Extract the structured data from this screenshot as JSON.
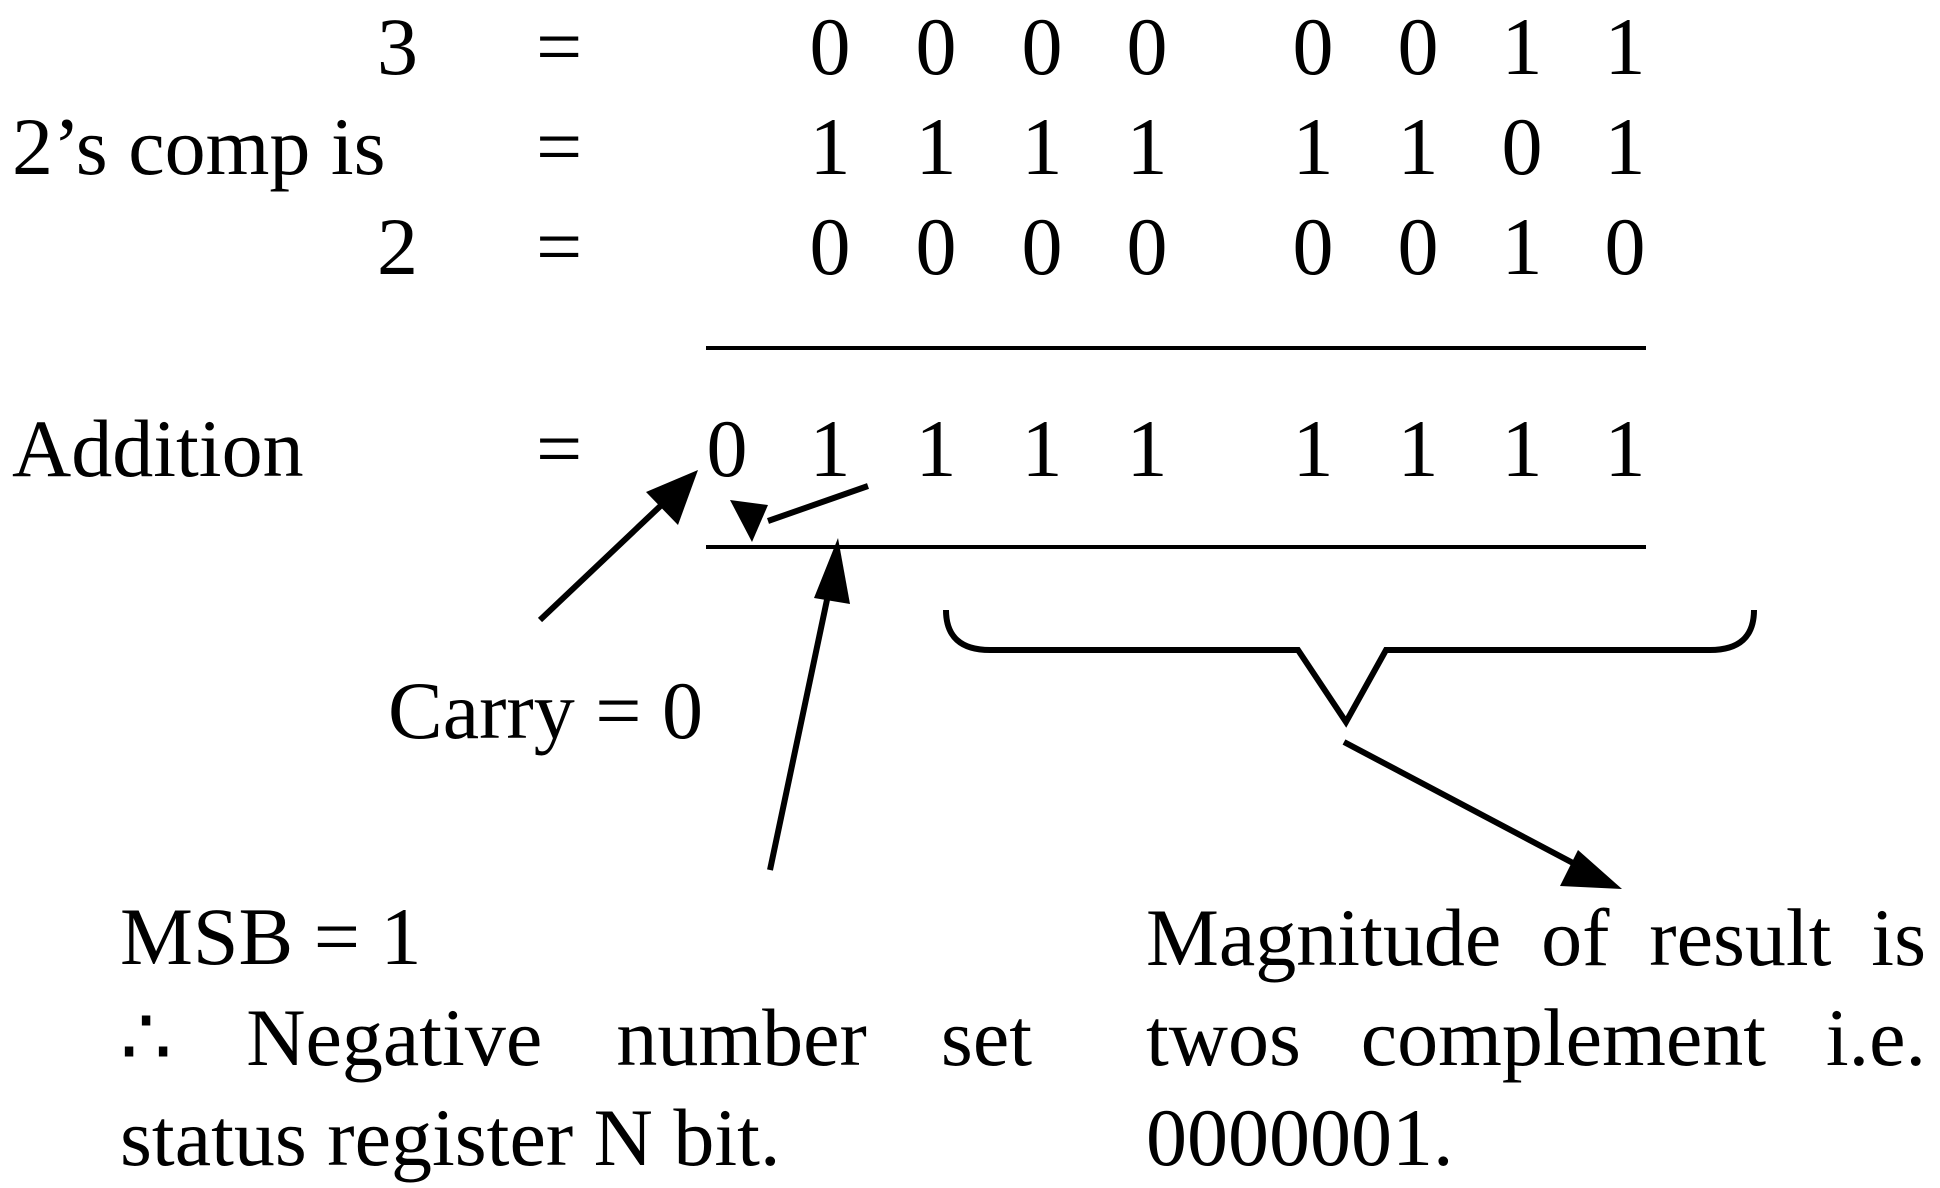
{
  "rows": [
    {
      "label": "3",
      "equals": "=",
      "bits": [
        "0",
        "0",
        "0",
        "0",
        "0",
        "0",
        "1",
        "1"
      ]
    },
    {
      "label": "2’s comp is",
      "equals": "=",
      "bits": [
        "1",
        "1",
        "1",
        "1",
        "1",
        "1",
        "0",
        "1"
      ]
    },
    {
      "label": "2",
      "equals": "=",
      "bits": [
        "0",
        "0",
        "0",
        "0",
        "0",
        "0",
        "1",
        "0"
      ]
    }
  ],
  "addition": {
    "label": "Addition",
    "equals": "=",
    "bits": [
      "0",
      "1",
      "1",
      "1",
      "1",
      "1",
      "1",
      "1",
      "1"
    ]
  },
  "annotations": {
    "carry": "Carry = 0",
    "msb_title": "MSB = 1",
    "msb_line2": "∴ Negative number set",
    "msb_line3": "status register N bit.",
    "magnitude_line1": "Magnitude of result is",
    "magnitude_line2": "twos complement i.e.",
    "magnitude_line3": "0000001."
  },
  "colors": {
    "ink": "#000000",
    "background": "#ffffff"
  }
}
